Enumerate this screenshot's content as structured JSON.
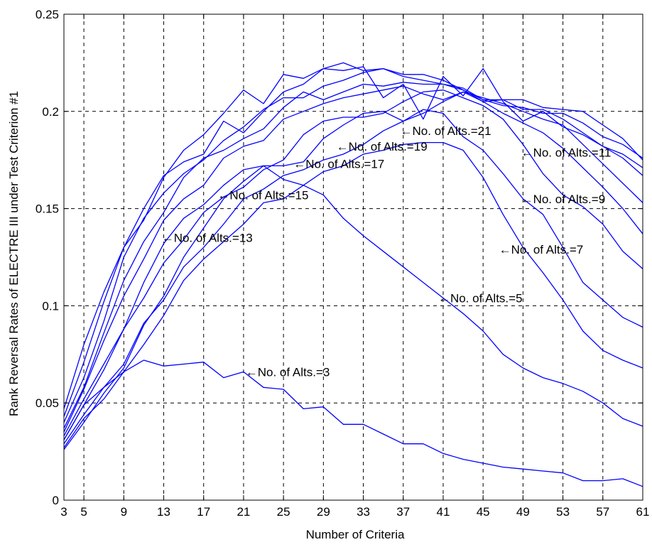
{
  "chart_data": {
    "type": "line",
    "xlabel": "Number of Criteria",
    "ylabel": "Rank Reversal Rates of ELECTRE III under Test Criterion #1",
    "xlim": [
      3,
      61
    ],
    "ylim": [
      0,
      0.25
    ],
    "xticks": [
      3,
      5,
      9,
      13,
      17,
      21,
      25,
      29,
      33,
      37,
      41,
      45,
      49,
      53,
      57,
      61
    ],
    "xtick_labels": [
      "3",
      "5",
      "9",
      "13",
      "17",
      "21",
      "25",
      "29",
      "33",
      "37",
      "41",
      "45",
      "49",
      "53",
      "57",
      "61"
    ],
    "yticks": [
      0,
      0.05,
      0.1,
      0.15,
      0.2,
      0.25
    ],
    "ytick_labels": [
      "0",
      "0.05",
      "0.1",
      "0.15",
      "0.2",
      "0.25"
    ],
    "grid": true,
    "line_color": "#0000ff",
    "x": [
      3,
      5,
      7,
      9,
      11,
      13,
      15,
      17,
      19,
      21,
      23,
      25,
      27,
      29,
      31,
      33,
      35,
      37,
      39,
      41,
      43,
      45,
      47,
      49,
      51,
      53,
      55,
      57,
      59,
      61
    ],
    "series": [
      {
        "values": [
          0.031,
          0.049,
          0.058,
          0.066,
          0.072,
          0.069,
          0.07,
          0.071,
          0.063,
          0.066,
          0.058,
          0.057,
          0.047,
          0.048,
          0.039,
          0.039,
          0.034,
          0.029,
          0.029,
          0.024,
          0.021,
          0.019,
          0.017,
          0.016,
          0.015,
          0.014,
          0.01,
          0.01,
          0.011,
          0.007
        ]
      },
      {
        "values": [
          0.026,
          0.04,
          0.055,
          0.068,
          0.09,
          0.105,
          0.125,
          0.14,
          0.155,
          0.164,
          0.172,
          0.165,
          0.162,
          0.157,
          0.145,
          0.136,
          0.128,
          0.12,
          0.112,
          0.104,
          0.096,
          0.087,
          0.075,
          0.068,
          0.063,
          0.06,
          0.056,
          0.05,
          0.042,
          0.038
        ]
      },
      {
        "values": [
          0.027,
          0.042,
          0.052,
          0.066,
          0.08,
          0.095,
          0.113,
          0.124,
          0.133,
          0.142,
          0.153,
          0.155,
          0.162,
          0.169,
          0.172,
          0.178,
          0.18,
          0.183,
          0.184,
          0.184,
          0.18,
          0.166,
          0.147,
          0.13,
          0.117,
          0.103,
          0.087,
          0.077,
          0.072,
          0.068
        ]
      },
      {
        "values": [
          0.029,
          0.044,
          0.058,
          0.07,
          0.091,
          0.103,
          0.12,
          0.13,
          0.142,
          0.155,
          0.16,
          0.167,
          0.17,
          0.175,
          0.178,
          0.183,
          0.19,
          0.195,
          0.201,
          0.199,
          0.187,
          0.18,
          0.168,
          0.155,
          0.147,
          0.13,
          0.112,
          0.103,
          0.094,
          0.089
        ]
      },
      {
        "values": [
          0.031,
          0.049,
          0.067,
          0.088,
          0.104,
          0.122,
          0.134,
          0.148,
          0.156,
          0.161,
          0.17,
          0.175,
          0.188,
          0.195,
          0.197,
          0.197,
          0.199,
          0.205,
          0.21,
          0.211,
          0.207,
          0.203,
          0.196,
          0.183,
          0.168,
          0.157,
          0.151,
          0.142,
          0.128,
          0.119
        ]
      },
      {
        "values": [
          0.033,
          0.052,
          0.07,
          0.088,
          0.112,
          0.132,
          0.145,
          0.152,
          0.162,
          0.17,
          0.172,
          0.172,
          0.174,
          0.186,
          0.193,
          0.199,
          0.2,
          0.195,
          0.199,
          0.205,
          0.21,
          0.205,
          0.199,
          0.194,
          0.189,
          0.181,
          0.171,
          0.161,
          0.15,
          0.137
        ]
      },
      {
        "values": [
          0.035,
          0.057,
          0.082,
          0.105,
          0.124,
          0.144,
          0.155,
          0.162,
          0.176,
          0.182,
          0.185,
          0.196,
          0.2,
          0.204,
          0.207,
          0.209,
          0.211,
          0.213,
          0.209,
          0.206,
          0.21,
          0.207,
          0.204,
          0.2,
          0.196,
          0.193,
          0.183,
          0.173,
          0.163,
          0.153
        ]
      },
      {
        "values": [
          0.037,
          0.058,
          0.086,
          0.113,
          0.133,
          0.148,
          0.166,
          0.176,
          0.18,
          0.186,
          0.191,
          0.202,
          0.21,
          0.206,
          0.21,
          0.214,
          0.213,
          0.215,
          0.214,
          0.214,
          0.211,
          0.206,
          0.206,
          0.201,
          0.201,
          0.196,
          0.189,
          0.182,
          0.178,
          0.171
        ]
      },
      {
        "values": [
          0.04,
          0.063,
          0.092,
          0.125,
          0.145,
          0.158,
          0.168,
          0.175,
          0.185,
          0.192,
          0.201,
          0.207,
          0.207,
          0.213,
          0.216,
          0.22,
          0.222,
          0.218,
          0.216,
          0.214,
          0.212,
          0.206,
          0.203,
          0.202,
          0.199,
          0.199,
          0.194,
          0.187,
          0.183,
          0.176
        ]
      },
      {
        "values": [
          0.043,
          0.071,
          0.102,
          0.13,
          0.15,
          0.167,
          0.174,
          0.178,
          0.195,
          0.189,
          0.2,
          0.21,
          0.214,
          0.222,
          0.221,
          0.223,
          0.207,
          0.214,
          0.196,
          0.218,
          0.208,
          0.222,
          0.205,
          0.195,
          0.2,
          0.192,
          0.188,
          0.182,
          0.176,
          0.167
        ]
      },
      {
        "values": [
          0.047,
          0.08,
          0.107,
          0.13,
          0.144,
          0.166,
          0.18,
          0.188,
          0.199,
          0.211,
          0.204,
          0.219,
          0.217,
          0.222,
          0.225,
          0.221,
          0.222,
          0.219,
          0.219,
          0.216,
          0.211,
          0.205,
          0.206,
          0.206,
          0.202,
          0.201,
          0.2,
          0.193,
          0.186,
          0.175
        ]
      }
    ],
    "annotations": [
      {
        "text": "No. of Alts.=3",
        "x": 21.2,
        "y": 0.066
      },
      {
        "text": "No. of Alts.=5",
        "x": 40.5,
        "y": 0.104
      },
      {
        "text": "No. of Alts.=7",
        "x": 46.6,
        "y": 0.129
      },
      {
        "text": "No. of Alts.=9",
        "x": 48.8,
        "y": 0.155
      },
      {
        "text": "No. of Alts.=11",
        "x": 48.8,
        "y": 0.179
      },
      {
        "text": "No. of Alts.=13",
        "x": 12.8,
        "y": 0.135
      },
      {
        "text": "No. of Alts.=15",
        "x": 18.4,
        "y": 0.157
      },
      {
        "text": "No. of Alts.=17",
        "x": 26.0,
        "y": 0.173
      },
      {
        "text": "No. of Alts.=19",
        "x": 30.3,
        "y": 0.182
      },
      {
        "text": "No. of Alts.=21",
        "x": 36.7,
        "y": 0.19
      }
    ],
    "annotation_arrow": "←"
  }
}
